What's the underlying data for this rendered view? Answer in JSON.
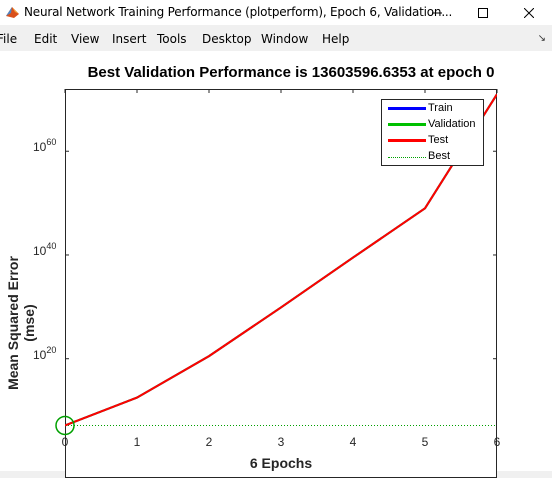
{
  "window": {
    "title": "Neural Network Training Performance (plotperform), Epoch 6, Validation...",
    "controls": {
      "minimize": "—",
      "maximize": "☐",
      "close": "✕"
    }
  },
  "menu": {
    "items": [
      "File",
      "Edit",
      "View",
      "Insert",
      "Tools",
      "Desktop",
      "Window",
      "Help"
    ],
    "overflow_arrow": "↘"
  },
  "chart_data": {
    "type": "line",
    "title": "Best Validation Performance is 13603596.6353 at epoch 0",
    "xlabel": "6 Epochs",
    "ylabel": "Mean Squared Error  (mse)",
    "x_ticks": [
      "0",
      "1",
      "2",
      "3",
      "4",
      "5",
      "6"
    ],
    "y_ticks": [
      {
        "base": "10",
        "exp": "20",
        "value": 1e+20
      },
      {
        "base": "10",
        "exp": "40",
        "value": 1e+40
      },
      {
        "base": "10",
        "exp": "60",
        "value": 1e+60
      }
    ],
    "y_scale": "log",
    "xlim": [
      0,
      6
    ],
    "ylim_log10": [
      -3,
      72
    ],
    "grid": false,
    "legend_position": "top-right",
    "legend": [
      {
        "name": "Train",
        "color": "#0000ff",
        "style": "solid"
      },
      {
        "name": "Validation",
        "color": "#00c000",
        "style": "solid"
      },
      {
        "name": "Test",
        "color": "#ff0000",
        "style": "solid"
      },
      {
        "name": "Best",
        "color": "#00a000",
        "style": "dotted"
      }
    ],
    "series": [
      {
        "name": "Train",
        "color": "#0000ff",
        "x": [
          0,
          1,
          2,
          3,
          4,
          5,
          6
        ],
        "log10_y": [
          7.13,
          12.5,
          20.5,
          29.9,
          39.5,
          49.0,
          71.0
        ]
      },
      {
        "name": "Validation",
        "color": "#00c000",
        "x": [
          0,
          1,
          2,
          3,
          4,
          5,
          6
        ],
        "log10_y": [
          7.13,
          12.5,
          20.5,
          29.9,
          39.5,
          49.0,
          71.0
        ]
      },
      {
        "name": "Test",
        "color": "#ff0000",
        "x": [
          0,
          1,
          2,
          3,
          4,
          5,
          6
        ],
        "log10_y": [
          7.13,
          12.5,
          20.5,
          29.9,
          39.5,
          49.0,
          71.0
        ]
      }
    ],
    "best": {
      "epoch": 0,
      "value": 13603596.6353,
      "log10_y": 7.13
    }
  }
}
